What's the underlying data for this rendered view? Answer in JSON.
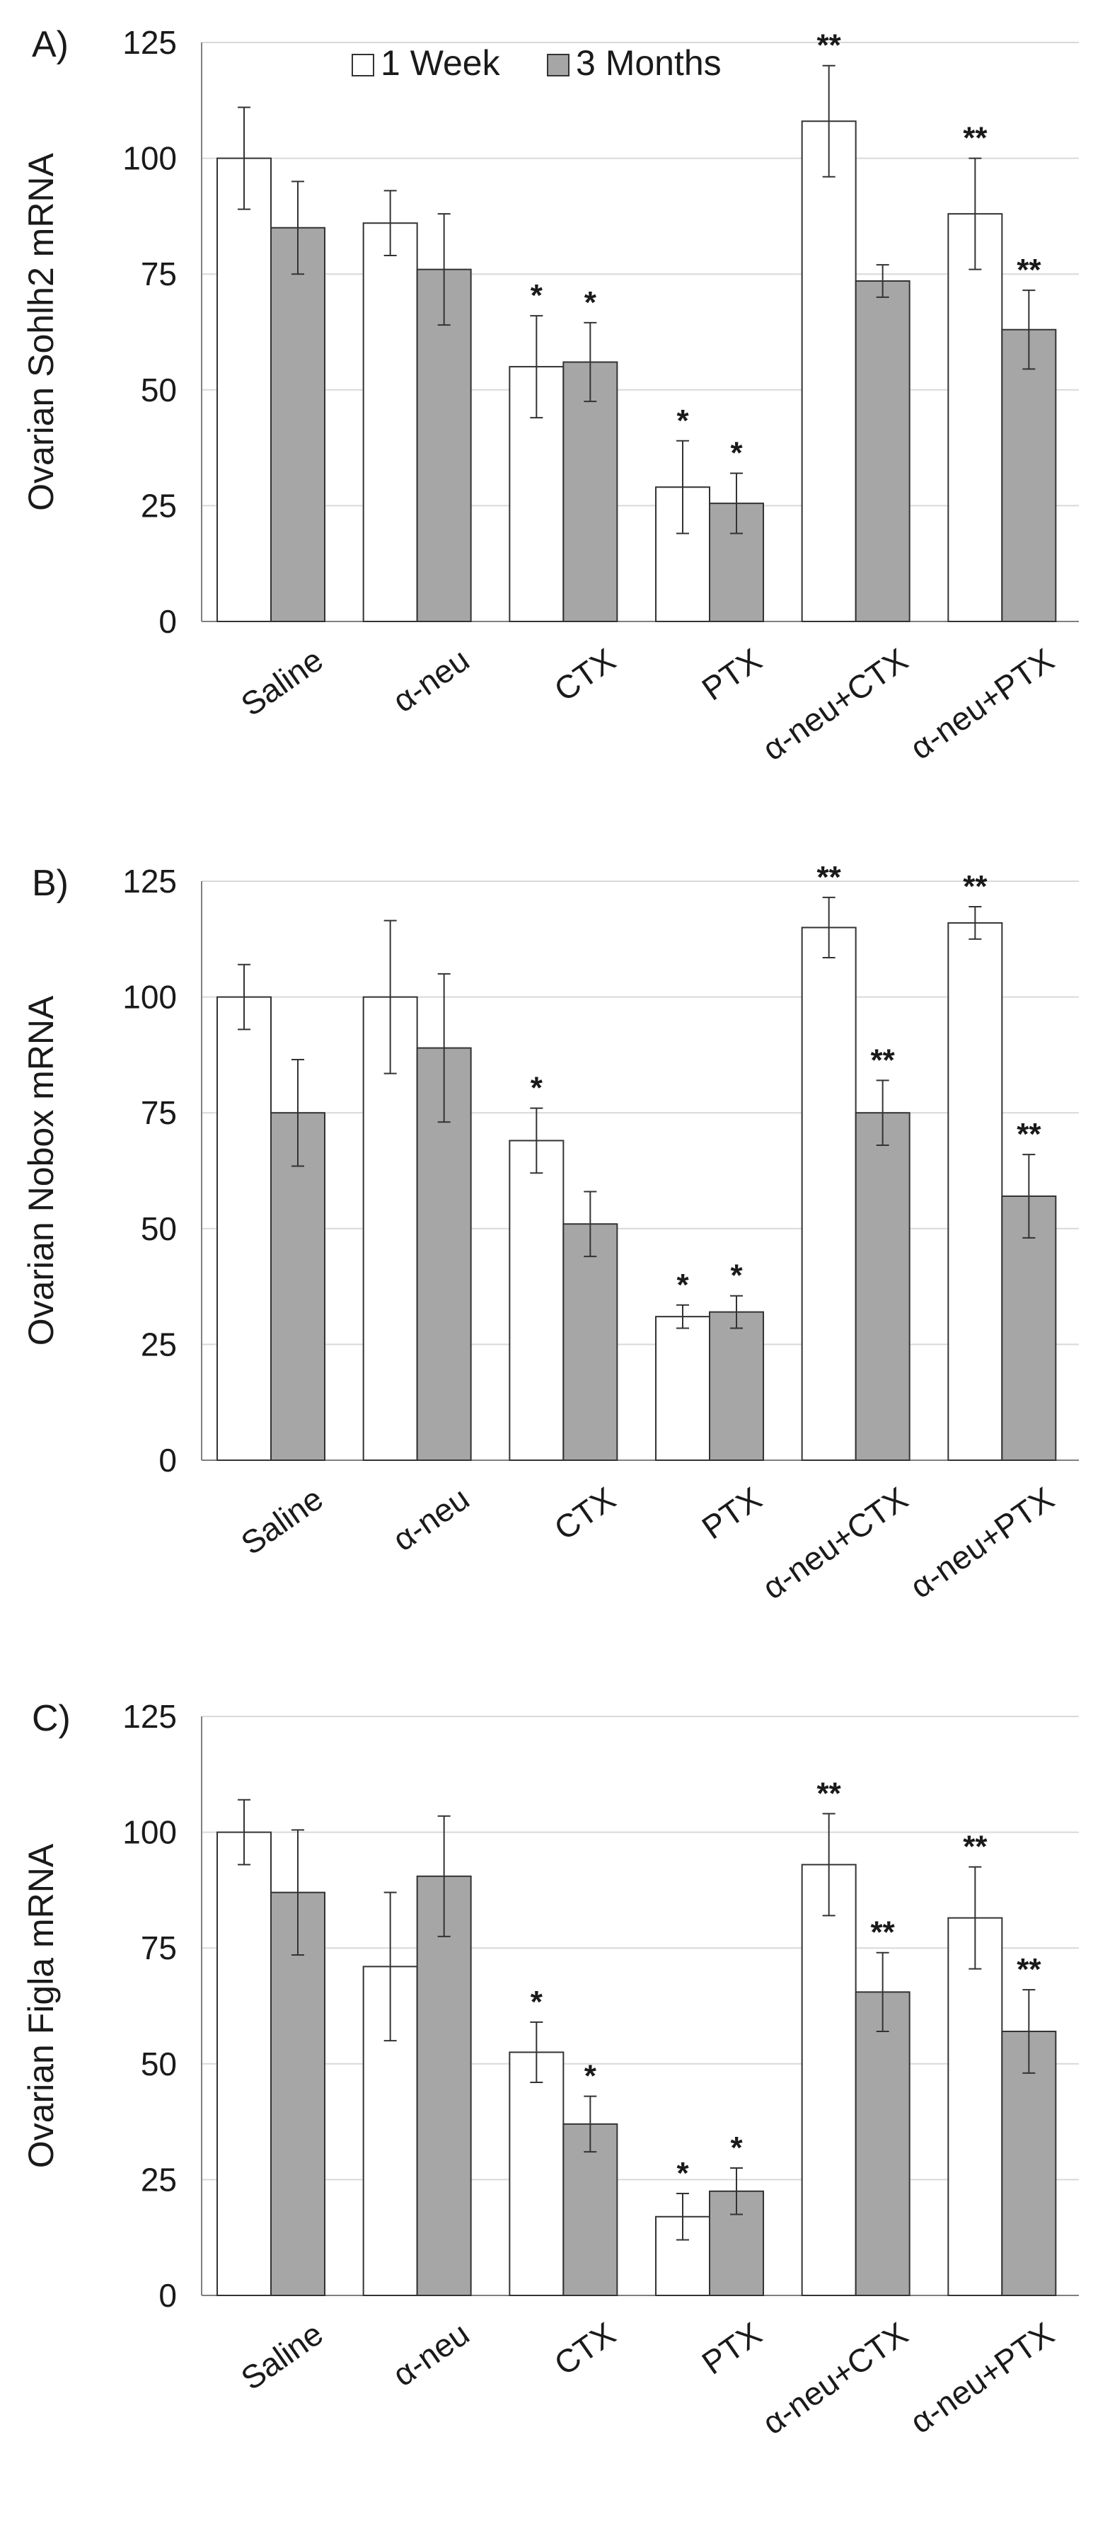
{
  "legend": {
    "entries": [
      {
        "name": "1 Week",
        "color": "#ffffff"
      },
      {
        "name": "3 Months",
        "color": "#a6a6a6"
      }
    ]
  },
  "chart_data": [
    {
      "panel_label": "A)",
      "type": "bar",
      "ylabel": "Ovarian Sohlh2 mRNA",
      "ylim": [
        0,
        125
      ],
      "yticks": [
        0,
        25,
        50,
        75,
        100,
        125
      ],
      "grid": true,
      "categories": [
        "Saline",
        "α-neu",
        "CTX",
        "PTX",
        "α-neu+CTX",
        "α-neu+PTX"
      ],
      "series": [
        {
          "name": "1 Week",
          "values": [
            100,
            86,
            55,
            29,
            108,
            88
          ],
          "errors": [
            11,
            7,
            11,
            10,
            12,
            12
          ],
          "significance": [
            "",
            "",
            "*",
            "*",
            "**",
            "**"
          ]
        },
        {
          "name": "3 Months",
          "values": [
            85,
            76,
            56,
            25.5,
            73.5,
            63
          ],
          "errors": [
            10,
            12,
            8.5,
            6.5,
            3.5,
            8.5
          ],
          "significance": [
            "",
            "",
            "*",
            "*",
            "",
            "**"
          ]
        }
      ]
    },
    {
      "panel_label": "B)",
      "type": "bar",
      "ylabel": "Ovarian Nobox mRNA",
      "ylim": [
        0,
        125
      ],
      "yticks": [
        0,
        25,
        50,
        75,
        100,
        125
      ],
      "grid": true,
      "categories": [
        "Saline",
        "α-neu",
        "CTX",
        "PTX",
        "α-neu+CTX",
        "α-neu+PTX"
      ],
      "series": [
        {
          "name": "1 Week",
          "values": [
            100,
            100,
            69,
            31,
            115,
            116
          ],
          "errors": [
            7,
            16.5,
            7,
            2.5,
            6.5,
            3.5
          ],
          "significance": [
            "",
            "",
            "*",
            "*",
            "**",
            "**"
          ]
        },
        {
          "name": "3 Months",
          "values": [
            75,
            89,
            51,
            32,
            75,
            57
          ],
          "errors": [
            11.5,
            16,
            7,
            3.5,
            7,
            9
          ],
          "significance": [
            "",
            "",
            "",
            "*",
            "**",
            "**"
          ]
        }
      ]
    },
    {
      "panel_label": "C)",
      "type": "bar",
      "ylabel": "Ovarian Figla mRNA",
      "ylim": [
        0,
        125
      ],
      "yticks": [
        0,
        25,
        50,
        75,
        100,
        125
      ],
      "grid": true,
      "categories": [
        "Saline",
        "α-neu",
        "CTX",
        "PTX",
        "α-neu+CTX",
        "α-neu+PTX"
      ],
      "series": [
        {
          "name": "1 Week",
          "values": [
            100,
            71,
            52.5,
            17,
            93,
            81.5
          ],
          "errors": [
            7,
            16,
            6.5,
            5,
            11,
            11
          ],
          "significance": [
            "",
            "",
            "*",
            "*",
            "**",
            "**"
          ]
        },
        {
          "name": "3 Months",
          "values": [
            87,
            90.5,
            37,
            22.5,
            65.5,
            57
          ],
          "errors": [
            13.5,
            13,
            6,
            5,
            8.5,
            9
          ],
          "significance": [
            "",
            "",
            "*",
            "*",
            "**",
            "**"
          ]
        }
      ]
    }
  ]
}
